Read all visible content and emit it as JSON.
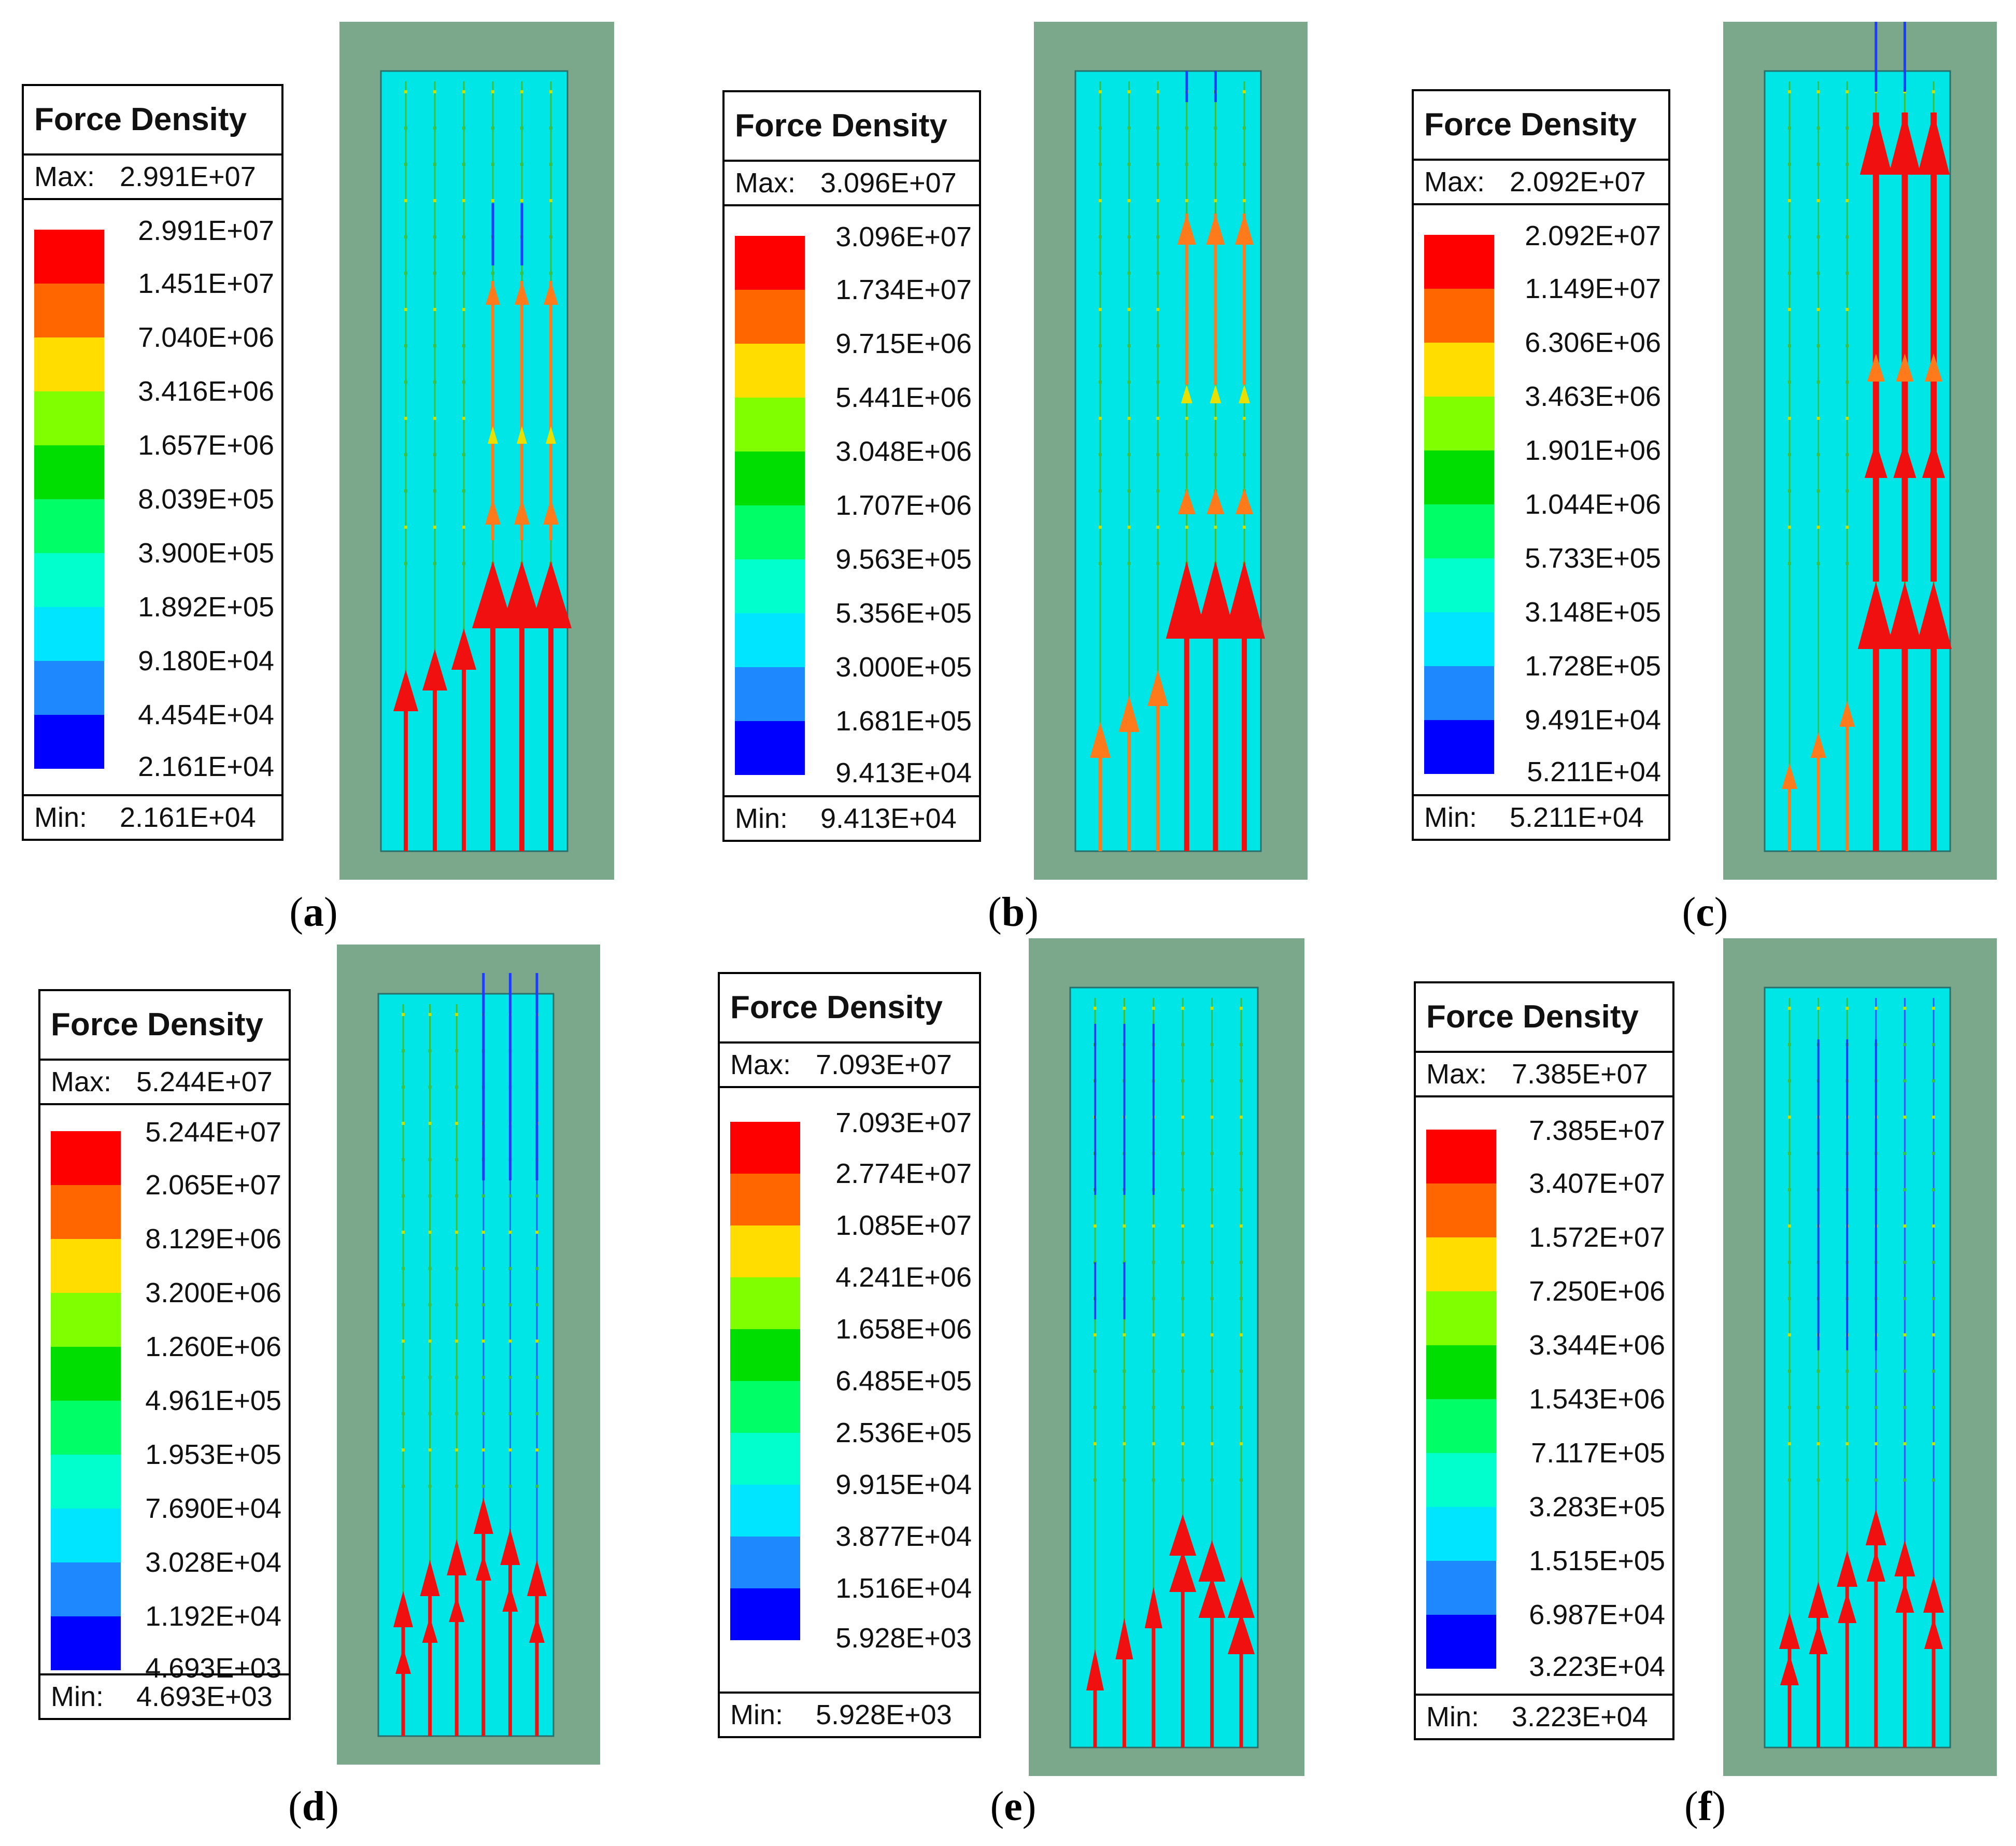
{
  "figure": {
    "legend_title": "Force Density",
    "max_label": "Max:",
    "min_label": "Min:",
    "color_scale": [
      "#ff0000",
      "#ff6600",
      "#ffdd00",
      "#80ff00",
      "#00dd00",
      "#00ff66",
      "#00ffcc",
      "#00e5ff",
      "#1e88ff",
      "#0000ff"
    ],
    "colors": {
      "housing": "#7ba88a",
      "field": "#00e6e6",
      "arrow_red": "#f01010",
      "arrow_orange": "#ff7a1a",
      "arrow_yellow": "#e8e000",
      "arrow_green": "#30c030",
      "arrow_blue": "#1e3cff"
    },
    "panels": [
      {
        "id": "a",
        "caption": "a",
        "pattern": "a",
        "max": "2.991E+07",
        "min": "2.161E+04",
        "levels": [
          "2.991E+07",
          "1.451E+07",
          "7.040E+06",
          "3.416E+06",
          "1.657E+06",
          "8.039E+05",
          "3.900E+05",
          "1.892E+05",
          "9.180E+04",
          "4.454E+04",
          "2.161E+04"
        ]
      },
      {
        "id": "b",
        "caption": "b",
        "pattern": "b",
        "max": "3.096E+07",
        "min": "9.413E+04",
        "levels": [
          "3.096E+07",
          "1.734E+07",
          "9.715E+06",
          "5.441E+06",
          "3.048E+06",
          "1.707E+06",
          "9.563E+05",
          "5.356E+05",
          "3.000E+05",
          "1.681E+05",
          "9.413E+04"
        ]
      },
      {
        "id": "c",
        "caption": "c",
        "pattern": "c",
        "max": "2.092E+07",
        "min": "5.211E+04",
        "levels": [
          "2.092E+07",
          "1.149E+07",
          "6.306E+06",
          "3.463E+06",
          "1.901E+06",
          "1.044E+06",
          "5.733E+05",
          "3.148E+05",
          "1.728E+05",
          "9.491E+04",
          "5.211E+04"
        ]
      },
      {
        "id": "d",
        "caption": "d",
        "pattern": "d",
        "max": "5.244E+07",
        "min": "4.693E+03",
        "levels": [
          "5.244E+07",
          "2.065E+07",
          "8.129E+06",
          "3.200E+06",
          "1.260E+06",
          "4.961E+05",
          "1.953E+05",
          "7.690E+04",
          "3.028E+04",
          "1.192E+04",
          "4.693E+03"
        ]
      },
      {
        "id": "e",
        "caption": "e",
        "pattern": "e",
        "max": "7.093E+07",
        "min": "5.928E+03",
        "levels": [
          "7.093E+07",
          "2.774E+07",
          "1.085E+07",
          "4.241E+06",
          "1.658E+06",
          "6.485E+05",
          "2.536E+05",
          "9.915E+04",
          "3.877E+04",
          "1.516E+04",
          "5.928E+03"
        ]
      },
      {
        "id": "f",
        "caption": "f",
        "pattern": "f",
        "max": "7.385E+07",
        "min": "3.223E+04",
        "levels": [
          "7.385E+07",
          "3.407E+07",
          "1.572E+07",
          "7.250E+06",
          "3.344E+06",
          "1.543E+06",
          "7.117E+05",
          "3.283E+05",
          "1.515E+05",
          "6.987E+04",
          "3.223E+04"
        ]
      }
    ]
  }
}
